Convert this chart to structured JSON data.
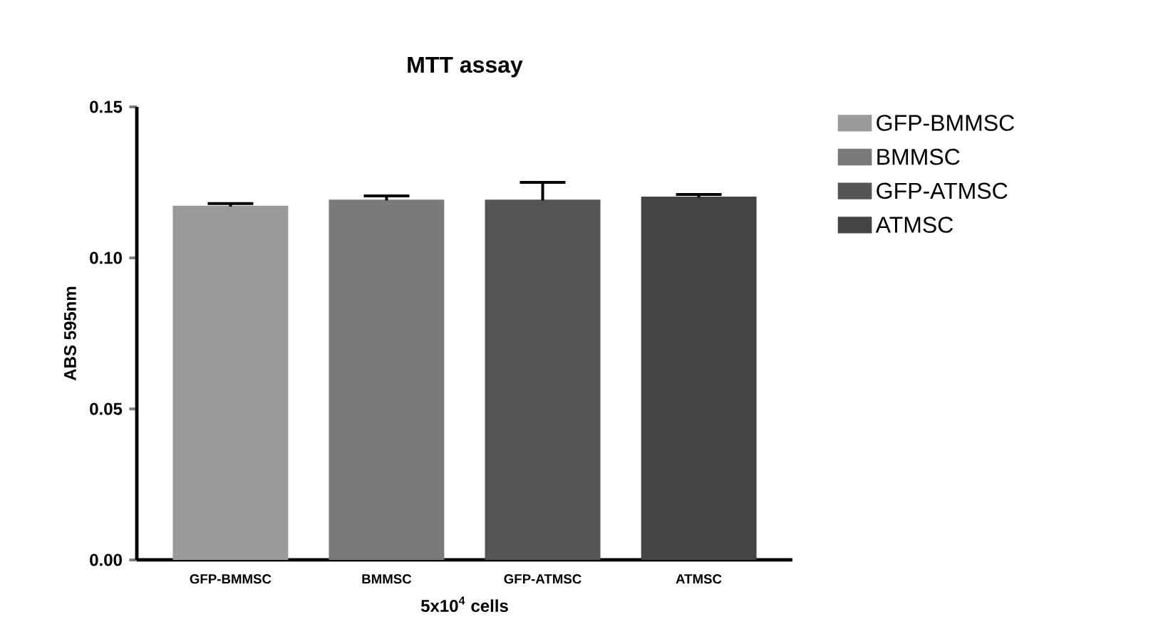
{
  "chart_data": {
    "type": "bar",
    "title": "MTT assay",
    "xlabel": "5x10$^{4}$ cells",
    "ylabel": "ABS 595nm",
    "categories": [
      "GFP-BMMSC",
      "BMMSC",
      "GFP-ATMSC",
      "ATMSC"
    ],
    "series": [
      {
        "name": "GFP-BMMSC",
        "color": "#9a9a9a",
        "values": [
          0.117,
          null,
          null,
          null
        ],
        "errors": [
          0.001,
          null,
          null,
          null
        ]
      },
      {
        "name": "BMMSC",
        "color": "#7a7a7a",
        "values": [
          null,
          0.119,
          null,
          null
        ],
        "errors": [
          null,
          0.0015,
          null,
          null
        ]
      },
      {
        "name": "GFP-ATMSC",
        "color": "#555555",
        "values": [
          null,
          null,
          0.119,
          null
        ],
        "errors": [
          null,
          null,
          0.006,
          null
        ]
      },
      {
        "name": "ATMSC",
        "color": "#444444",
        "values": [
          null,
          null,
          null,
          0.12
        ],
        "errors": [
          null,
          null,
          null,
          0.001
        ]
      }
    ],
    "ylim": [
      0,
      0.15
    ],
    "yticks": [
      {
        "value": 0,
        "label": "0.00"
      },
      {
        "value": 0.05,
        "label": "0.05"
      },
      {
        "value": 0.1,
        "label": "0.10"
      },
      {
        "value": 0.15,
        "label": "0.15"
      }
    ],
    "grid": false,
    "legend": "right"
  }
}
